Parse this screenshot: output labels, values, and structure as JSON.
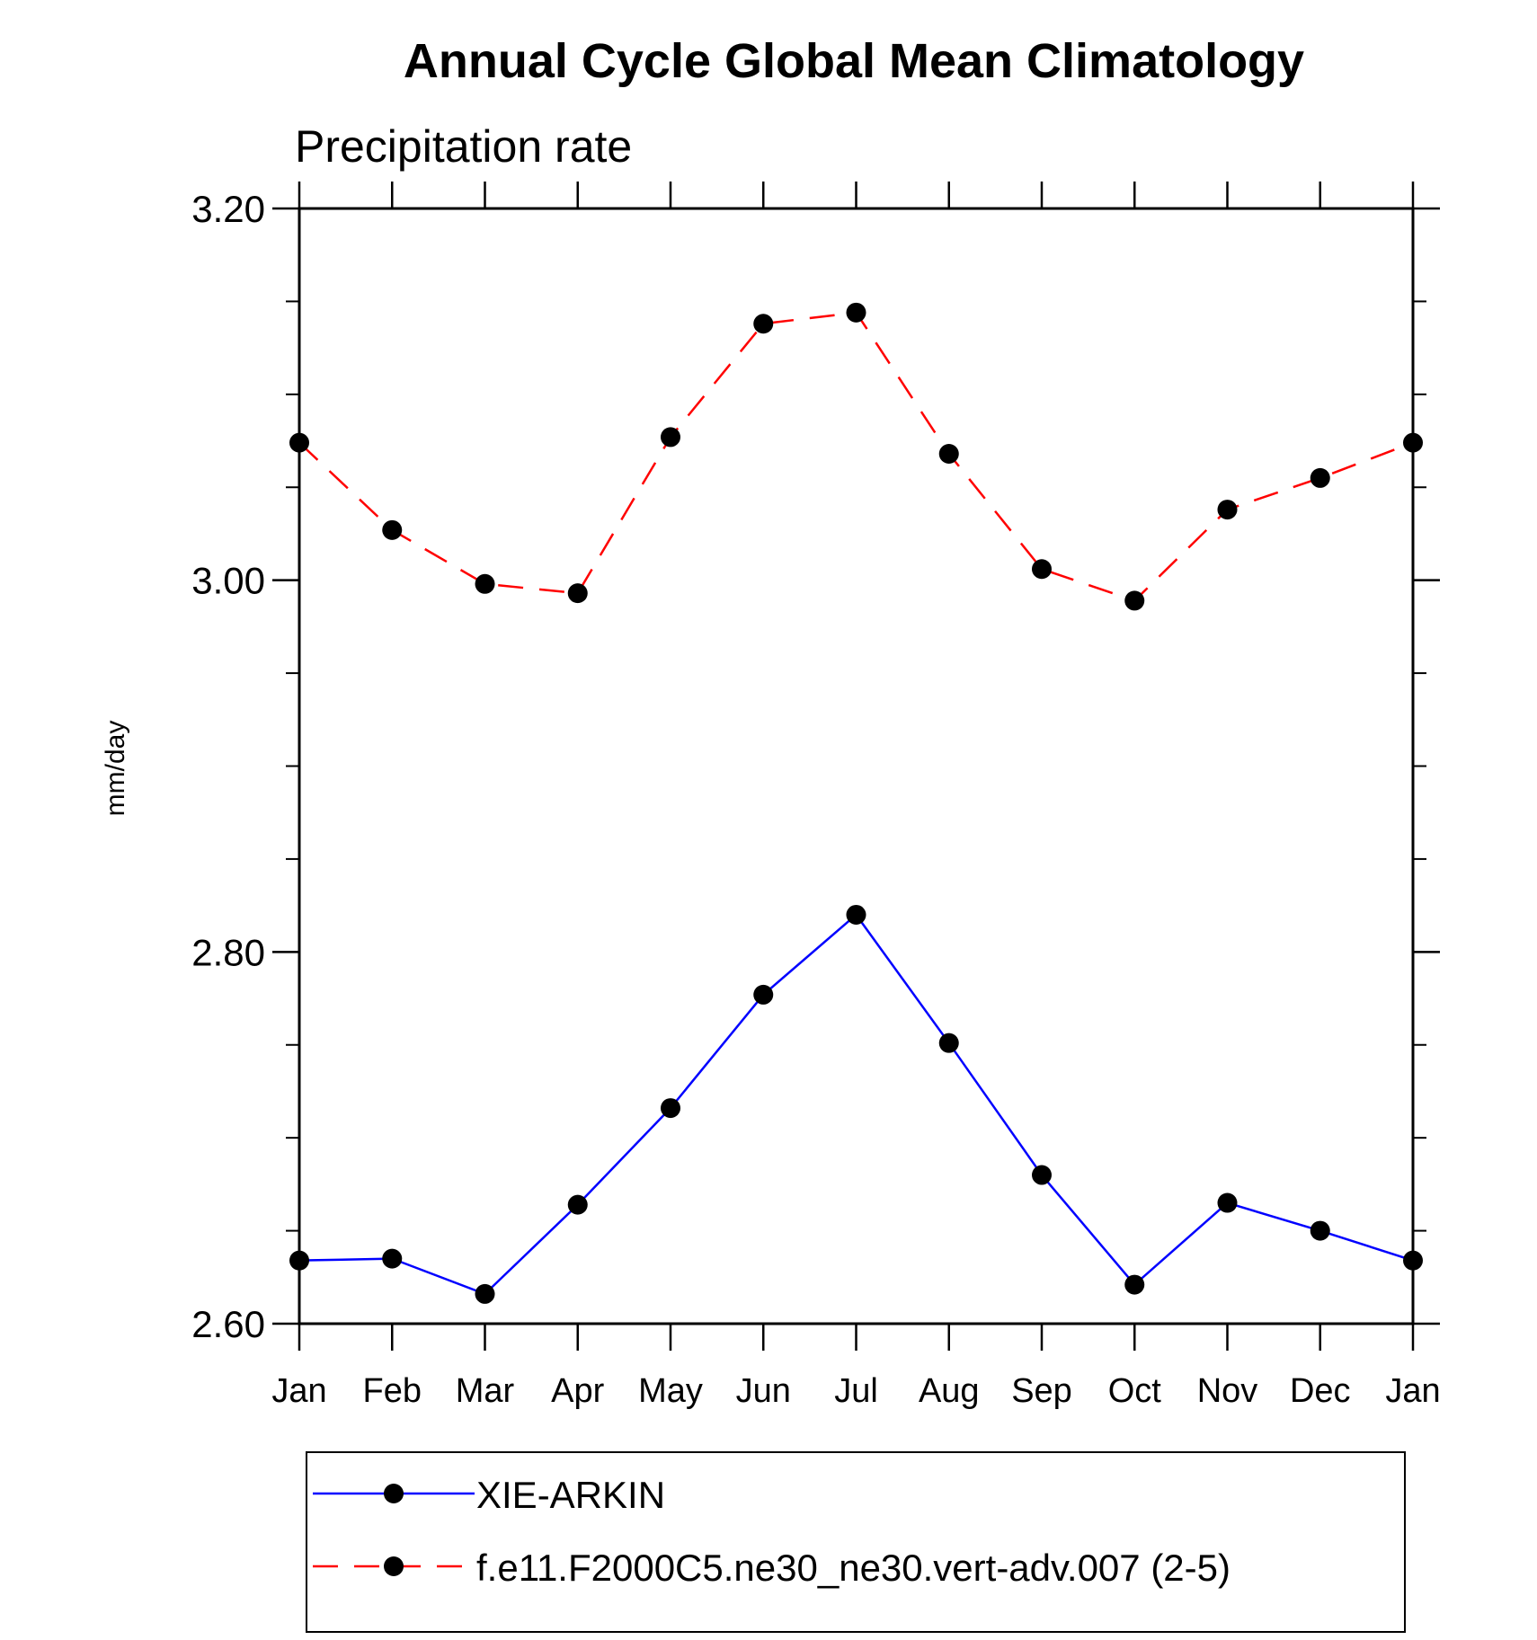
{
  "chart_data": {
    "type": "line",
    "title": "Annual Cycle Global Mean Climatology",
    "subtitle": "Precipitation rate",
    "ylabel": "mm/day",
    "xlabel": "",
    "ylim": [
      2.6,
      3.2
    ],
    "yticks": [
      "2.60",
      "2.80",
      "3.00",
      "3.20"
    ],
    "yminor_step": 0.05,
    "categories": [
      "Jan",
      "Feb",
      "Mar",
      "Apr",
      "May",
      "Jun",
      "Jul",
      "Aug",
      "Sep",
      "Oct",
      "Nov",
      "Dec",
      "Jan"
    ],
    "series": [
      {
        "name": "XIE-ARKIN",
        "color": "#0000ff",
        "dash": "solid",
        "values": [
          2.634,
          2.635,
          2.616,
          2.664,
          2.716,
          2.777,
          2.82,
          2.751,
          2.68,
          2.621,
          2.665,
          2.65,
          2.634
        ]
      },
      {
        "name": "f.e11.F2000C5.ne30_ne30.vert-adv.007 (2-5)",
        "color": "#ff0000",
        "dash": "dashed",
        "values": [
          3.074,
          3.027,
          2.998,
          2.993,
          3.077,
          3.138,
          3.144,
          3.068,
          3.006,
          2.989,
          3.038,
          3.055,
          3.074
        ]
      }
    ],
    "legend_position": "bottom"
  }
}
